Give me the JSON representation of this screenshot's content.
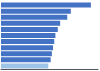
{
  "chart_data": {
    "type": "bar",
    "orientation": "horizontal",
    "categories": [
      null,
      null,
      null,
      null,
      null,
      null,
      null,
      null,
      null,
      null,
      null
    ],
    "values": [
      76,
      59,
      56,
      50,
      48,
      46,
      45,
      44,
      43,
      42,
      40
    ],
    "colors": [
      "#4472c4",
      "#4472c4",
      "#4472c4",
      "#4472c4",
      "#4472c4",
      "#4472c4",
      "#4472c4",
      "#4472c4",
      "#4472c4",
      "#4472c4",
      "#9dc3e6"
    ],
    "xlim": [
      0,
      82
    ],
    "grid": false,
    "tick_labels": false
  }
}
